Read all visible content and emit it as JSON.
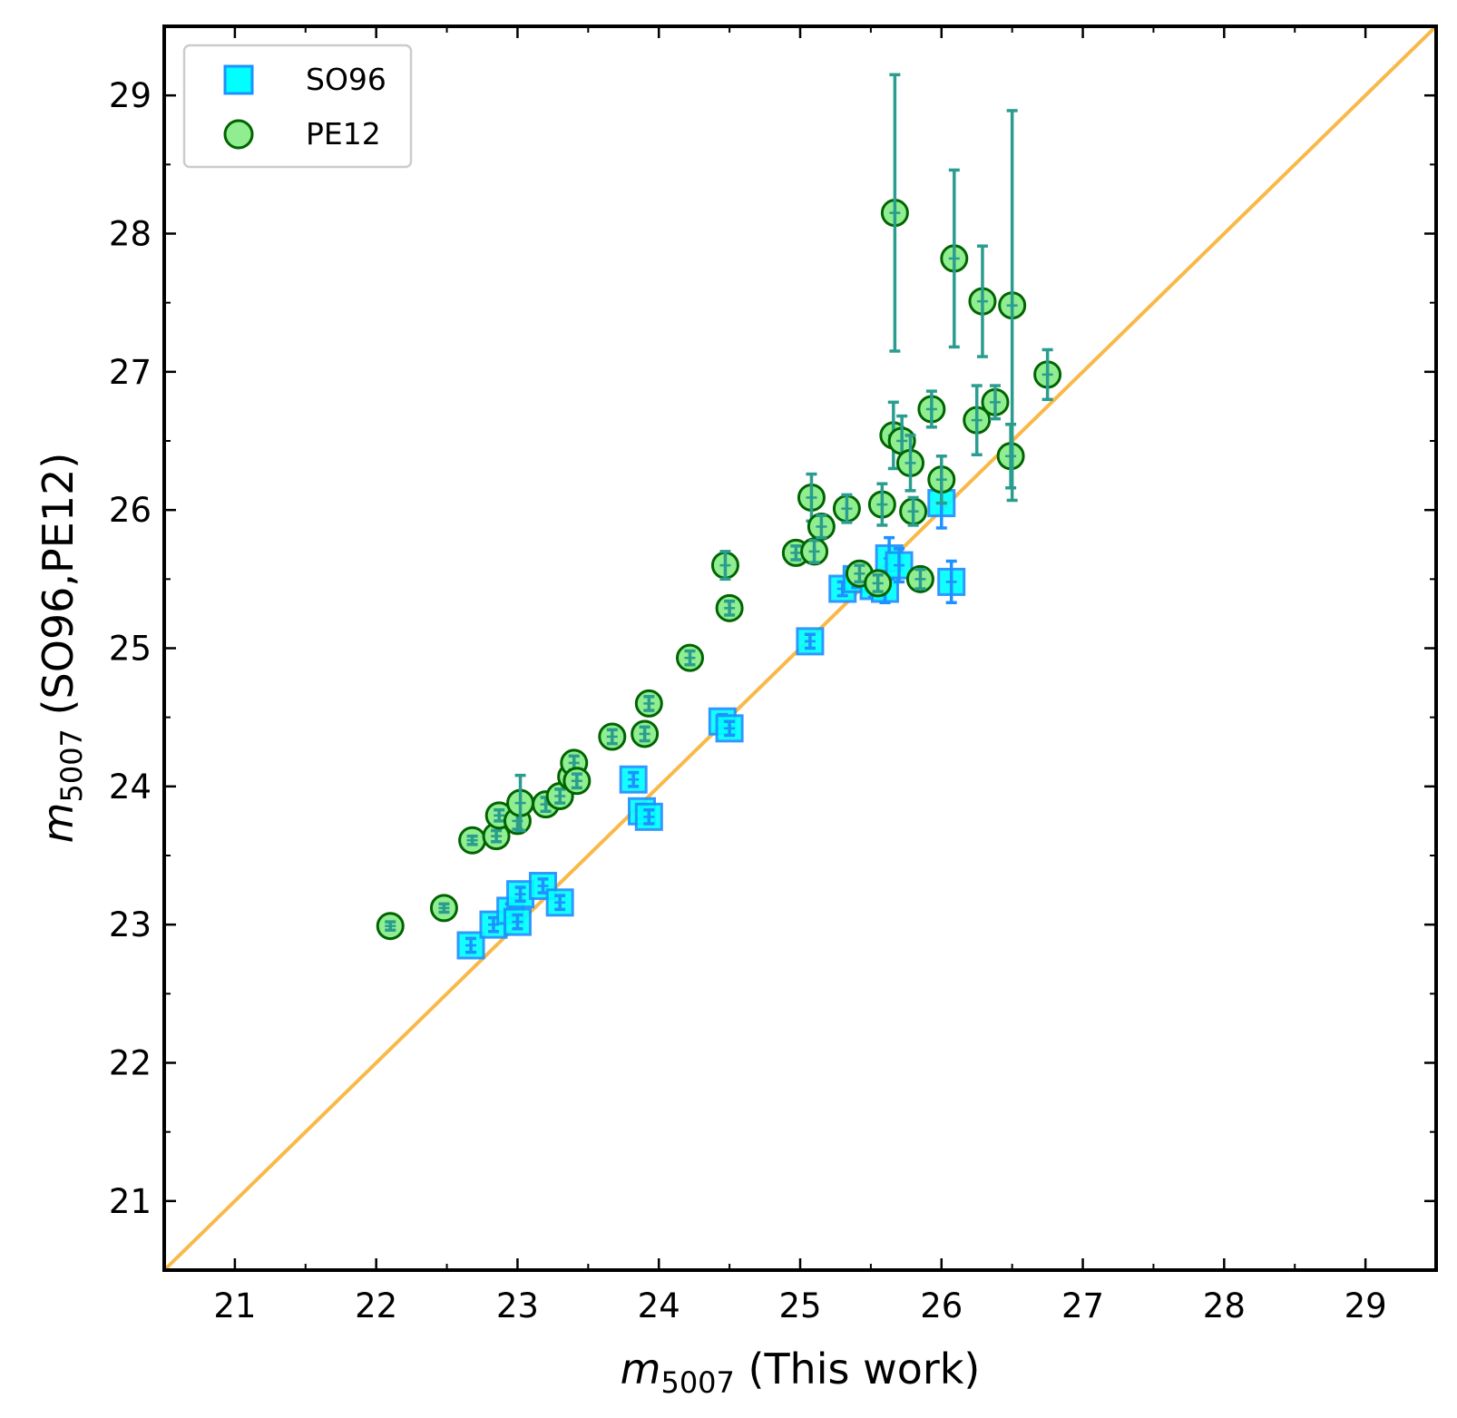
{
  "chart_data": {
    "type": "scatter",
    "title": "",
    "xlabel": {
      "var": "m",
      "sub": "5007",
      "rest": " (This work)"
    },
    "ylabel": {
      "var": "m",
      "sub": "5007",
      "rest": " (SO96,PE12)"
    },
    "xlim": [
      20.5,
      29.5
    ],
    "ylim": [
      20.5,
      29.5
    ],
    "xticks": [
      "21",
      "22",
      "23",
      "24",
      "25",
      "26",
      "27",
      "28",
      "29"
    ],
    "yticks": [
      "21",
      "22",
      "23",
      "24",
      "25",
      "26",
      "27",
      "28",
      "29"
    ],
    "grid": false,
    "legend_position": "top-left",
    "reference_line": {
      "x": [
        20.5,
        29.5
      ],
      "y": [
        20.5,
        29.5
      ],
      "color": "#f9b949"
    },
    "series": [
      {
        "name": "SO96",
        "marker": "square",
        "fill": "#00ffff",
        "edge": "#1e90ff",
        "errcolor": "#1e90ff",
        "points": [
          [
            22.67,
            22.85,
            0.05
          ],
          [
            22.83,
            23.0,
            0.05
          ],
          [
            22.95,
            23.1,
            0.05
          ],
          [
            23.0,
            23.02,
            0.05
          ],
          [
            23.02,
            23.22,
            0.05
          ],
          [
            23.18,
            23.28,
            0.05
          ],
          [
            23.3,
            23.16,
            0.05
          ],
          [
            23.82,
            24.05,
            0.05
          ],
          [
            23.88,
            23.82,
            0.05
          ],
          [
            23.93,
            23.78,
            0.05
          ],
          [
            24.45,
            24.47,
            0.05
          ],
          [
            24.5,
            24.42,
            0.05
          ],
          [
            25.07,
            25.05,
            0.05
          ],
          [
            25.3,
            25.43,
            0.05
          ],
          [
            25.4,
            25.5,
            0.06
          ],
          [
            25.52,
            25.45,
            0.08
          ],
          [
            25.6,
            25.43,
            0.1
          ],
          [
            25.63,
            25.65,
            0.15
          ],
          [
            25.7,
            25.6,
            0.12
          ],
          [
            26.0,
            26.05,
            0.18
          ],
          [
            26.07,
            25.48,
            0.15
          ]
        ]
      },
      {
        "name": "PE12",
        "marker": "circle",
        "fill": "#90ee90",
        "edge": "#006400",
        "errcolor": "#2a9d8f",
        "points": [
          [
            22.1,
            22.99,
            0.03
          ],
          [
            22.48,
            23.12,
            0.03
          ],
          [
            22.68,
            23.61,
            0.03
          ],
          [
            22.85,
            23.64,
            0.04
          ],
          [
            22.87,
            23.79,
            0.04
          ],
          [
            23.0,
            23.75,
            0.06
          ],
          [
            23.02,
            23.88,
            0.2
          ],
          [
            23.2,
            23.87,
            0.05
          ],
          [
            23.3,
            23.93,
            0.05
          ],
          [
            23.38,
            24.07,
            0.05
          ],
          [
            23.4,
            24.17,
            0.05
          ],
          [
            23.42,
            24.04,
            0.05
          ],
          [
            23.67,
            24.36,
            0.05
          ],
          [
            23.9,
            24.38,
            0.05
          ],
          [
            23.93,
            24.6,
            0.05
          ],
          [
            24.22,
            24.93,
            0.05
          ],
          [
            24.47,
            25.6,
            0.1
          ],
          [
            24.5,
            25.29,
            0.05
          ],
          [
            24.97,
            25.69,
            0.05
          ],
          [
            25.08,
            26.09,
            0.17
          ],
          [
            25.1,
            25.7,
            0.08
          ],
          [
            25.15,
            25.88,
            0.08
          ],
          [
            25.33,
            26.01,
            0.1
          ],
          [
            25.42,
            25.54,
            0.06
          ],
          [
            25.55,
            25.47,
            0.06
          ],
          [
            25.58,
            26.04,
            0.15
          ],
          [
            25.66,
            26.54,
            0.24
          ],
          [
            25.67,
            28.15,
            1.0
          ],
          [
            25.72,
            26.5,
            0.18
          ],
          [
            25.78,
            26.34,
            0.2
          ],
          [
            25.8,
            25.99,
            0.1
          ],
          [
            25.85,
            25.5,
            0.07
          ],
          [
            25.93,
            26.73,
            0.13
          ],
          [
            26.0,
            26.22,
            0.17
          ],
          [
            26.09,
            27.82,
            0.64
          ],
          [
            26.25,
            26.65,
            0.25
          ],
          [
            26.29,
            27.51,
            0.4
          ],
          [
            26.38,
            26.78,
            0.12
          ],
          [
            26.49,
            26.39,
            0.23
          ],
          [
            26.5,
            27.48,
            1.41
          ],
          [
            26.75,
            26.98,
            0.18
          ]
        ]
      }
    ]
  }
}
